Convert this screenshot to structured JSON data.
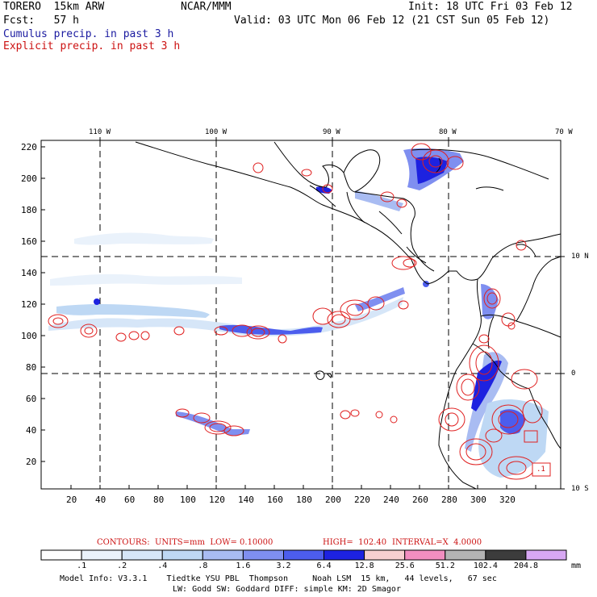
{
  "header": {
    "model": "TORERO  15km ARW",
    "org": "NCAR/MMM",
    "init": "Init: 18 UTC Fri 03 Feb 12",
    "fcst_label": "Fcst:   57 h",
    "valid": "Valid: 03 UTC Mon 06 Feb 12 (21 CST Sun 05 Feb 12)",
    "legend_cumulus": "Cumulus precip. in past 3 h",
    "legend_explicit": "Explicit precip. in past 3 h"
  },
  "map": {
    "lon_labels": [
      "110 W",
      "100 W",
      "90 W",
      "80 W",
      "70 W"
    ],
    "lat_labels": [
      "10 N",
      "0",
      "10 S"
    ],
    "y_ticks": [
      "220",
      "200",
      "180",
      "160",
      "140",
      "120",
      "100",
      "80",
      "60",
      "40",
      "20"
    ],
    "x_ticks": [
      "20",
      "40",
      "60",
      "80",
      "100",
      "120",
      "140",
      "160",
      "180",
      "200",
      "220",
      "240",
      "260",
      "280",
      "300",
      "320"
    ],
    "annotation_box": ".1"
  },
  "contour_info": {
    "units": "CONTOURS:  UNITS=mm  LOW= 0.10000",
    "high": "HIGH=  102.40",
    "interval": "INTERVAL=X  4.0000"
  },
  "colorbar": {
    "units": "mm",
    "labels": [
      ".1",
      ".2",
      ".4",
      ".8",
      "1.6",
      "3.2",
      "6.4",
      "12.8",
      "25.6",
      "51.2",
      "102.4",
      "204.8"
    ],
    "colors": [
      "#ffffff",
      "#eaf2fb",
      "#d6e6f8",
      "#bed8f4",
      "#a9bcf2",
      "#7f8ff0",
      "#4c5ded",
      "#1d22e0",
      "#f7cfd0",
      "#f28ec0",
      "#b4b4b4",
      "#3c3c3c",
      "#d8a8f3"
    ]
  },
  "footer": {
    "line1": "Model Info: V3.3.1    Tiedtke YSU PBL  Thompson     Noah LSM  15 km,   44 levels,   67 sec",
    "line2": "LW: Godd SW: Goddard DIFF: simple KM: 2D Smagor"
  }
}
